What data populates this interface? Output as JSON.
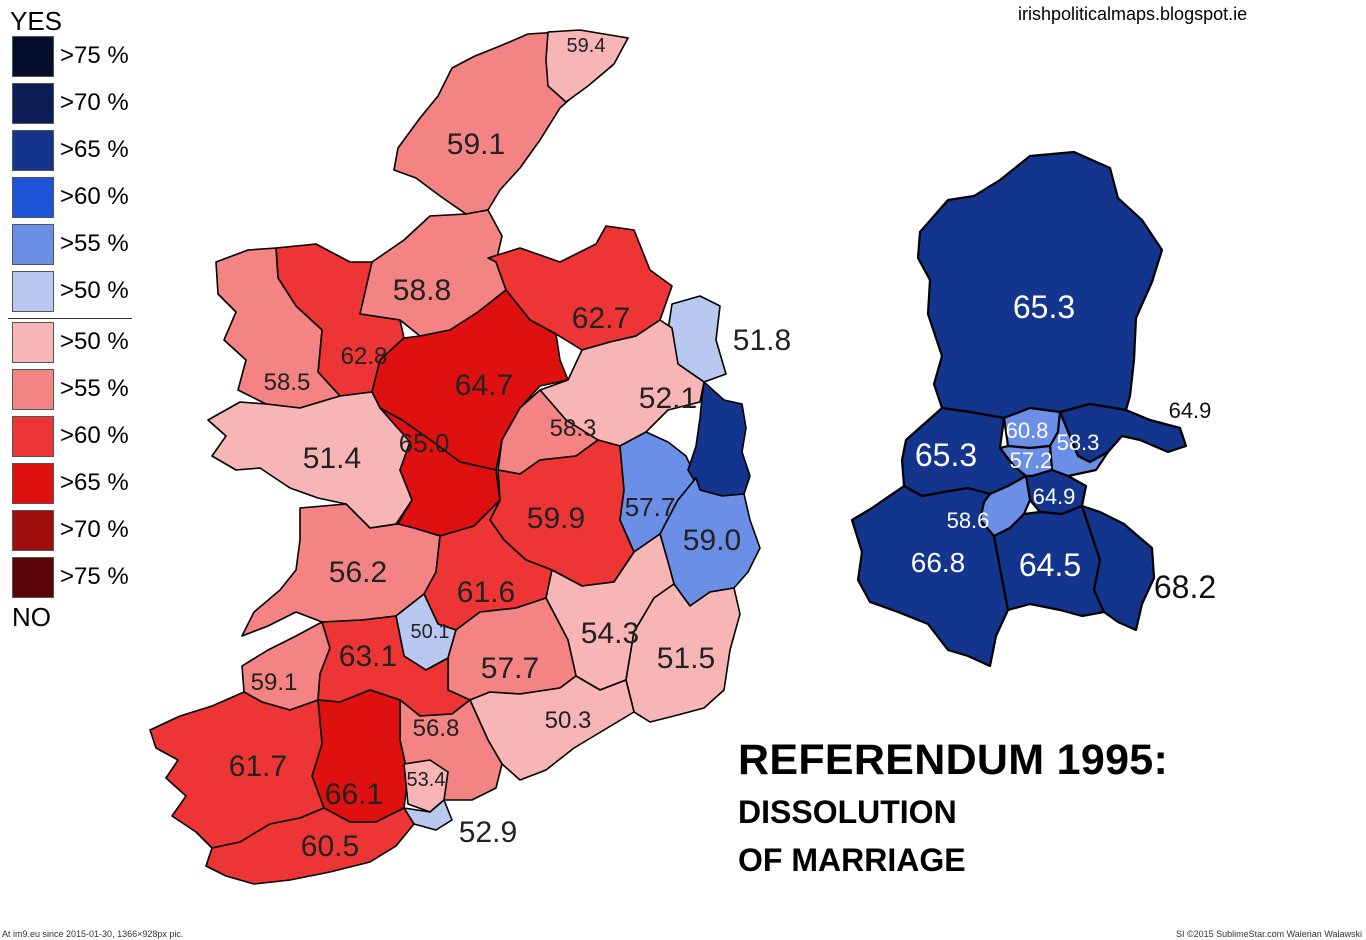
{
  "source_text": "irishpoliticalmaps.blogspot.ie",
  "title": "REFERENDUM 1995:",
  "subtitle_line1": "DISSOLUTION",
  "subtitle_line2": "OF MARRIAGE",
  "footer_left": "At im9.eu since 2015-01-30, 1366×928px pic.",
  "footer_right": "SI ©2015 SublimeStar.com Walerian Walawski",
  "legend": {
    "yes_label": "YES",
    "no_label": "NO",
    "yes_items": [
      {
        "label": ">75 %",
        "color": "#050d2c"
      },
      {
        "label": ">70 %",
        "color": "#0c1d55"
      },
      {
        "label": ">65 %",
        "color": "#14358d"
      },
      {
        "label": ">60 %",
        "color": "#1e55d8"
      },
      {
        "label": ">55 %",
        "color": "#6b8ee6"
      },
      {
        "label": ">50 %",
        "color": "#b9c8f0"
      }
    ],
    "no_items": [
      {
        "label": ">50 %",
        "color": "#f8b5b5"
      },
      {
        "label": ">55 %",
        "color": "#f48383"
      },
      {
        "label": ">60 %",
        "color": "#ee3535"
      },
      {
        "label": ">65 %",
        "color": "#df1010"
      },
      {
        "label": ">70 %",
        "color": "#a00d0d"
      },
      {
        "label": ">75 %",
        "color": "#5b0509"
      }
    ]
  },
  "map_labels": [
    "59.4",
    "59.1",
    "58.8",
    "62.7",
    "51.8",
    "62.8",
    "64.7",
    "58.5",
    "52.1",
    "58.3",
    "65.0",
    "51.4",
    "57.7",
    "59.9",
    "59.0",
    "56.2",
    "61.6",
    "50.1",
    "54.3",
    "63.1",
    "57.7",
    "51.5",
    "59.1",
    "56.8",
    "50.3",
    "61.7",
    "66.1",
    "53.4",
    "60.5",
    "52.9"
  ],
  "dublin_labels": [
    "65.3",
    "64.9",
    "60.8",
    "58.3",
    "65.3",
    "57.2",
    "64.9",
    "58.6",
    "66.8",
    "64.5",
    "68.2"
  ]
}
